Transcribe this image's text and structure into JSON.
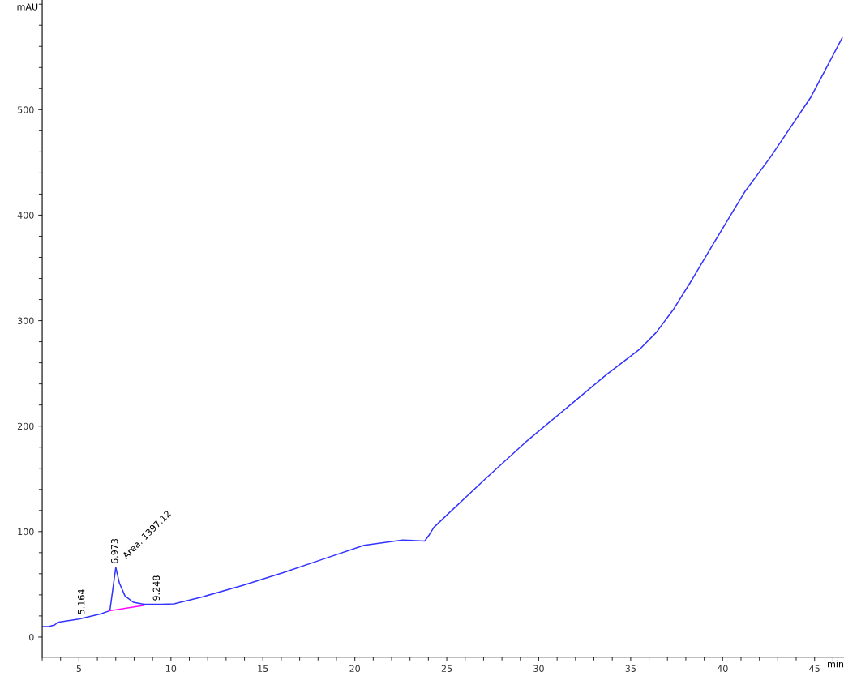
{
  "chart_data": {
    "type": "line",
    "xlabel": "min",
    "ylabel": "mAU",
    "xlim": [
      3,
      46.6
    ],
    "ylim": [
      -19,
      604
    ],
    "xticks": [
      5,
      10,
      15,
      20,
      25,
      30,
      35,
      40,
      45
    ],
    "yticks": [
      0,
      100,
      200,
      300,
      400,
      500
    ],
    "grid": false,
    "legend": false,
    "marker": "none",
    "line_style": "solid",
    "series": [
      {
        "color": "#3333ff",
        "x": [
          3.0,
          3.35,
          3.68,
          3.85,
          4.2,
          5.0,
          6.2,
          6.68,
          7.0,
          7.2,
          7.5,
          7.95,
          8.53,
          9.5,
          10.16,
          11.7,
          13.9,
          16.1,
          18.3,
          20.5,
          22.6,
          23.8,
          24.05,
          24.3,
          24.9,
          27.1,
          29.3,
          31.5,
          33.7,
          35.5,
          36.4,
          37.3,
          38.2,
          39.5,
          41.2,
          42.6,
          44.8,
          46.5
        ],
        "values": [
          10,
          10,
          11.5,
          14,
          15,
          17,
          22,
          25,
          66,
          51,
          39,
          33,
          31,
          31,
          31.5,
          38,
          49,
          61,
          74,
          87,
          92,
          91,
          97,
          104,
          114,
          150,
          185,
          217,
          249,
          273,
          289,
          310,
          335,
          373,
          422,
          455,
          512,
          568
        ]
      },
      {
        "color": "#ff00ff",
        "x": [
          6.68,
          8.53
        ],
        "values": [
          25,
          30
        ]
      }
    ],
    "annotations": [
      {
        "text": "5.164",
        "x": 5.164,
        "y": 18
      },
      {
        "text": "6.973",
        "x": 6.973,
        "y": 66
      },
      {
        "text": "Area: 1397.12",
        "x": 7.1,
        "y": 66
      },
      {
        "text": "9.248",
        "x": 9.248,
        "y": 31
      }
    ]
  }
}
